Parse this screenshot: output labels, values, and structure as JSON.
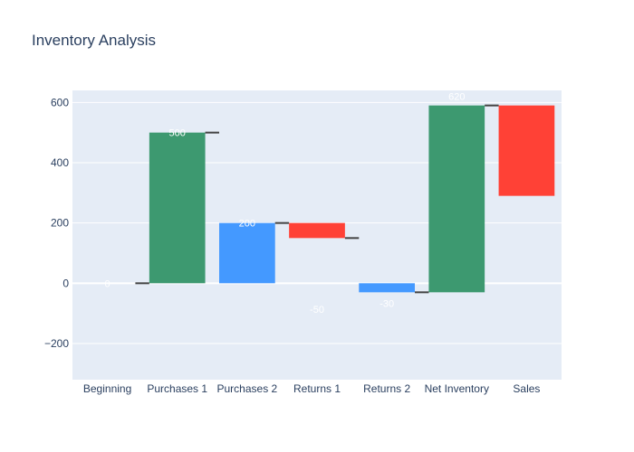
{
  "chart_data": {
    "type": "waterfall",
    "title": "Inventory Analysis",
    "xlabel": "",
    "ylabel": "",
    "ylim": [
      -320,
      640
    ],
    "yticks": [
      -200,
      0,
      200,
      400,
      600
    ],
    "ytick_labels": [
      "−200",
      "0",
      "200",
      "400",
      "600"
    ],
    "grid": true,
    "categories": [
      "Beginning",
      "Purchases 1",
      "Purchases 2",
      "Returns 1",
      "Returns 2",
      "Net Inventory",
      "Sales"
    ],
    "bars": [
      {
        "category": "Beginning",
        "base": 0,
        "value": 0,
        "color": "#3D9970",
        "label": "0"
      },
      {
        "category": "Purchases 1",
        "base": 0,
        "value": 500,
        "color": "#3D9970",
        "label": "500"
      },
      {
        "category": "Purchases 2",
        "base": 0,
        "value": 200,
        "color": "#4499FF",
        "label": "200"
      },
      {
        "category": "Returns 1",
        "base": 200,
        "value": -50,
        "color": "#FF4136",
        "label": "-50"
      },
      {
        "category": "Returns 2",
        "base": 0,
        "value": -30,
        "color": "#4499FF",
        "label": "-30"
      },
      {
        "category": "Net Inventory",
        "base": -30,
        "value": 620,
        "color": "#3D9970",
        "label": "620"
      },
      {
        "category": "Sales",
        "base": 590,
        "value": -300,
        "color": "#FF4136",
        "label": "-300"
      }
    ],
    "connectors": [
      {
        "from": "Beginning",
        "to": "Purchases 1",
        "y": 0
      },
      {
        "from": "Purchases 1",
        "to": "Purchases 2",
        "y": 500
      },
      {
        "from": "Purchases 2",
        "to": "Returns 1",
        "y": 200
      },
      {
        "from": "Returns 1",
        "to": "Returns 2",
        "y": 150
      },
      {
        "from": "Returns 2",
        "to": "Net Inventory",
        "y": -30
      },
      {
        "from": "Net Inventory",
        "to": "Sales",
        "y": 590
      }
    ],
    "colors": {
      "background": "#ffffff",
      "plot_bg": "#E5ECF6",
      "grid": "#ffffff",
      "axis_text": "#2a3f5f",
      "connector": "#444444",
      "bar_label": "#ffffff"
    }
  }
}
